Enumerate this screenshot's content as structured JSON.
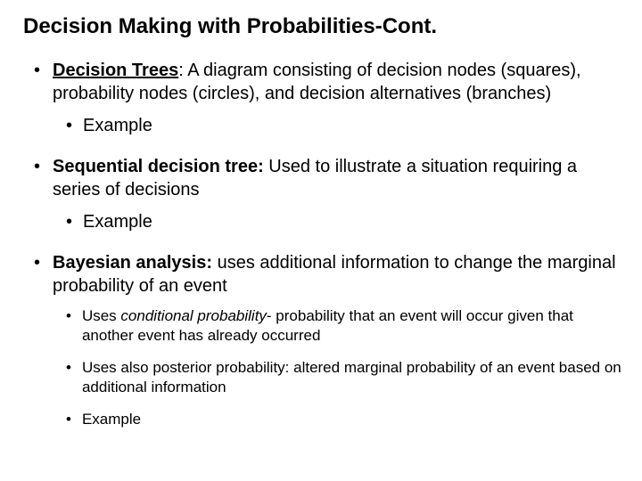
{
  "title": "Decision Making with Probabilities-Cont.",
  "items": {
    "decisionTrees": {
      "term": "Decision Trees",
      "desc": ": A diagram consisting of decision nodes (squares), probability nodes (circles), and decision alternatives (branches)",
      "sub": "Example"
    },
    "sequential": {
      "term": "Sequential decision tree:",
      "desc": " Used to illustrate a situation requiring a series of decisions",
      "sub": "Example"
    },
    "bayesian": {
      "term": "Bayesian analysis:",
      "desc": " uses additional information to change the marginal probability of an event",
      "sub1_pre": "Uses ",
      "sub1_term": "conditional probability",
      "sub1_post": "- probability that an event will occur given that another event has already occurred",
      "sub2": "Uses also posterior probability: altered marginal probability of an event based on additional information",
      "sub3": "Example"
    }
  },
  "style": {
    "background_color": "#ffffff",
    "text_color": "#000000",
    "title_fontsize": 24,
    "body_fontsize": 20,
    "sub_fontsize": 17,
    "font_family": "Arial"
  }
}
